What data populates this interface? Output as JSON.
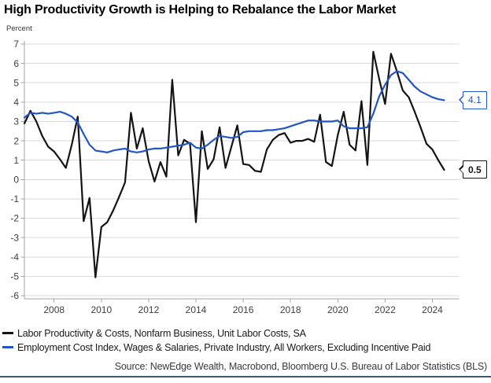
{
  "title": "High Productivity Growth is Helping to Rebalance the Labor Market",
  "y_axis_unit": "Percent",
  "source": "Source: NewEdge Wealth, Macrobond, Bloomberg U.S. Bureau of Labor Statistics (BLS)",
  "colors": {
    "series_black": "#141414",
    "series_blue": "#2155c8",
    "gridline": "#d9d9d9",
    "axis": "#a6a6a6",
    "tick_label": "#404040",
    "bottom_rule": "#3d5a74"
  },
  "chart_data": {
    "type": "line",
    "x_start": 2006.75,
    "x_step": 0.25,
    "ylim": [
      -6,
      7
    ],
    "yticks": [
      -6,
      -5,
      -4,
      -3,
      -2,
      -1,
      0,
      1,
      2,
      3,
      4,
      5,
      6,
      7
    ],
    "xticks": [
      2008,
      2010,
      2012,
      2014,
      2016,
      2018,
      2020,
      2022,
      2024
    ],
    "grid": true,
    "legend_position": "bottom",
    "series": [
      {
        "name": "Labor Productivity & Costs, Nonfarm Business, Unit Labor Costs, SA",
        "color": "#141414",
        "end_label": "0.5",
        "values": [
          2.9,
          3.55,
          3.0,
          2.25,
          1.7,
          1.45,
          1.05,
          0.6,
          1.8,
          3.25,
          -2.15,
          -0.95,
          -5.05,
          -2.45,
          -2.2,
          -1.6,
          -0.9,
          -0.15,
          3.45,
          1.6,
          2.65,
          0.95,
          -0.1,
          0.9,
          0.15,
          5.15,
          1.25,
          2.05,
          1.85,
          -2.2,
          2.5,
          0.55,
          1.05,
          2.7,
          0.6,
          1.7,
          2.8,
          0.8,
          0.75,
          0.45,
          0.4,
          1.55,
          2.05,
          2.3,
          2.4,
          1.9,
          2.0,
          2.0,
          2.1,
          1.95,
          3.35,
          0.9,
          0.7,
          2.3,
          3.5,
          1.8,
          1.5,
          4.05,
          0.75,
          6.6,
          5.2,
          3.9,
          6.5,
          5.6,
          4.6,
          4.25,
          3.5,
          2.7,
          1.85,
          1.55,
          1.0,
          0.5
        ]
      },
      {
        "name": "Employment Cost Index, Wages & Salaries, Private Industry, All Workers, Excluding Incentive Paid",
        "color": "#2155c8",
        "end_label": "4.1",
        "values": [
          3.2,
          3.45,
          3.4,
          3.45,
          3.4,
          3.45,
          3.5,
          3.4,
          3.25,
          2.95,
          2.35,
          1.8,
          1.5,
          1.45,
          1.4,
          1.5,
          1.55,
          1.6,
          1.45,
          1.4,
          1.45,
          1.55,
          1.6,
          1.6,
          1.65,
          1.7,
          1.75,
          1.8,
          1.9,
          1.65,
          1.6,
          1.8,
          2.05,
          2.25,
          2.2,
          2.15,
          2.2,
          2.45,
          2.5,
          2.5,
          2.5,
          2.55,
          2.55,
          2.6,
          2.65,
          2.75,
          2.85,
          2.95,
          3.05,
          3.05,
          3.0,
          3.0,
          3.0,
          3.05,
          2.75,
          2.65,
          2.65,
          2.65,
          2.7,
          3.4,
          4.3,
          4.9,
          5.4,
          5.6,
          5.5,
          5.15,
          4.8,
          4.55,
          4.4,
          4.25,
          4.15,
          4.1
        ]
      }
    ]
  }
}
